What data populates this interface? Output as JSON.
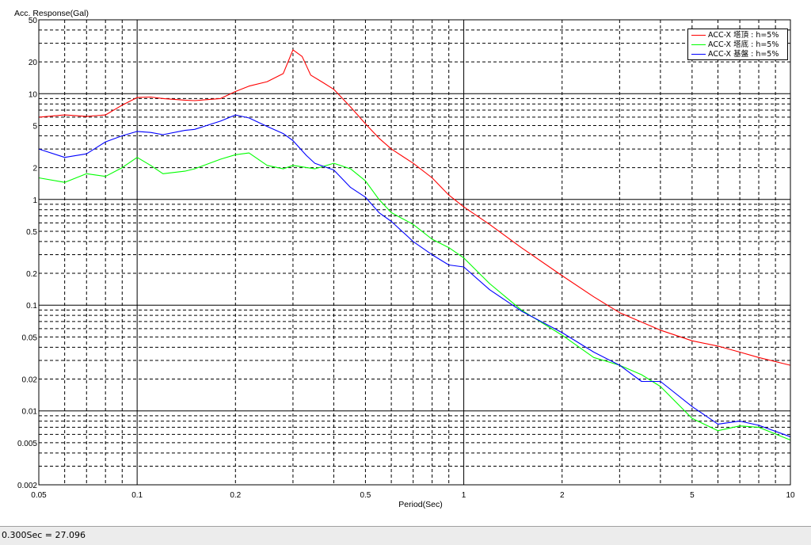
{
  "status_bar": {
    "text": "0.300Sec = 27.096"
  },
  "chart_data": {
    "type": "line",
    "title": "",
    "ylabel": "Acc. Response(Gal)",
    "xlabel": "Period(Sec)",
    "xscale": "log",
    "yscale": "log",
    "xlim": [
      0.05,
      10
    ],
    "ylim": [
      0.002,
      50
    ],
    "xticks": [
      0.05,
      0.1,
      0.2,
      0.5,
      1,
      2,
      5,
      10
    ],
    "xtick_labels": [
      "0.05",
      "0.1",
      "0.2",
      "0.5",
      "1",
      "2",
      "5",
      "10"
    ],
    "yticks": [
      0.002,
      0.005,
      0.01,
      0.02,
      0.05,
      0.1,
      0.2,
      0.5,
      1,
      2,
      5,
      10,
      20,
      50
    ],
    "ytick_labels": [
      "0.002",
      "0.005",
      "0.01",
      "0.02",
      "0.05",
      "0.1",
      "0.2",
      "0.5",
      "1",
      "2",
      "5",
      "10",
      "20",
      "50"
    ],
    "grid": true,
    "legend_position": "top-right",
    "series": [
      {
        "name": "ACC-X 塔頂 : h=5%",
        "color": "#ff0000",
        "points": [
          [
            0.05,
            6.0
          ],
          [
            0.06,
            6.3
          ],
          [
            0.07,
            6.1
          ],
          [
            0.08,
            6.3
          ],
          [
            0.09,
            7.8
          ],
          [
            0.1,
            9.2
          ],
          [
            0.11,
            9.3
          ],
          [
            0.12,
            9.0
          ],
          [
            0.14,
            8.7
          ],
          [
            0.15,
            8.6
          ],
          [
            0.18,
            9.0
          ],
          [
            0.2,
            10.5
          ],
          [
            0.22,
            11.8
          ],
          [
            0.25,
            13.0
          ],
          [
            0.28,
            15.5
          ],
          [
            0.3,
            26.0
          ],
          [
            0.32,
            22.5
          ],
          [
            0.34,
            15.0
          ],
          [
            0.37,
            12.8
          ],
          [
            0.4,
            11.0
          ],
          [
            0.45,
            7.5
          ],
          [
            0.5,
            5.2
          ],
          [
            0.55,
            3.8
          ],
          [
            0.6,
            3.0
          ],
          [
            0.7,
            2.2
          ],
          [
            0.8,
            1.6
          ],
          [
            0.9,
            1.1
          ],
          [
            1.0,
            0.85
          ],
          [
            1.2,
            0.58
          ],
          [
            1.5,
            0.35
          ],
          [
            2.0,
            0.19
          ],
          [
            2.5,
            0.12
          ],
          [
            3.0,
            0.085
          ],
          [
            4.0,
            0.058
          ],
          [
            5.0,
            0.046
          ],
          [
            6.0,
            0.041
          ],
          [
            7.0,
            0.036
          ],
          [
            8.0,
            0.032
          ],
          [
            10.0,
            0.027
          ]
        ]
      },
      {
        "name": "ACC-X 塔底 : h=5%",
        "color": "#00ff00",
        "points": [
          [
            0.05,
            1.6
          ],
          [
            0.06,
            1.45
          ],
          [
            0.07,
            1.75
          ],
          [
            0.08,
            1.65
          ],
          [
            0.09,
            2.0
          ],
          [
            0.1,
            2.5
          ],
          [
            0.11,
            2.1
          ],
          [
            0.12,
            1.75
          ],
          [
            0.14,
            1.85
          ],
          [
            0.15,
            1.95
          ],
          [
            0.18,
            2.4
          ],
          [
            0.2,
            2.65
          ],
          [
            0.22,
            2.75
          ],
          [
            0.25,
            2.1
          ],
          [
            0.28,
            1.95
          ],
          [
            0.3,
            2.1
          ],
          [
            0.35,
            1.95
          ],
          [
            0.4,
            2.2
          ],
          [
            0.45,
            1.95
          ],
          [
            0.5,
            1.5
          ],
          [
            0.55,
            1.0
          ],
          [
            0.6,
            0.75
          ],
          [
            0.7,
            0.58
          ],
          [
            0.8,
            0.42
          ],
          [
            0.9,
            0.35
          ],
          [
            1.0,
            0.28
          ],
          [
            1.2,
            0.16
          ],
          [
            1.5,
            0.09
          ],
          [
            2.0,
            0.052
          ],
          [
            2.5,
            0.032
          ],
          [
            3.0,
            0.027
          ],
          [
            3.5,
            0.022
          ],
          [
            4.0,
            0.017
          ],
          [
            5.0,
            0.0085
          ],
          [
            6.0,
            0.0065
          ],
          [
            7.0,
            0.0072
          ],
          [
            8.0,
            0.007
          ],
          [
            10.0,
            0.0053
          ]
        ]
      },
      {
        "name": "ACC-X 基盤 : h=5%",
        "color": "#0000ff",
        "points": [
          [
            0.05,
            3.0
          ],
          [
            0.06,
            2.5
          ],
          [
            0.07,
            2.7
          ],
          [
            0.08,
            3.5
          ],
          [
            0.09,
            4.0
          ],
          [
            0.1,
            4.4
          ],
          [
            0.11,
            4.3
          ],
          [
            0.12,
            4.1
          ],
          [
            0.14,
            4.5
          ],
          [
            0.15,
            4.6
          ],
          [
            0.18,
            5.5
          ],
          [
            0.2,
            6.3
          ],
          [
            0.22,
            5.9
          ],
          [
            0.25,
            4.9
          ],
          [
            0.28,
            4.2
          ],
          [
            0.3,
            3.6
          ],
          [
            0.33,
            2.6
          ],
          [
            0.35,
            2.2
          ],
          [
            0.4,
            1.9
          ],
          [
            0.45,
            1.3
          ],
          [
            0.5,
            1.05
          ],
          [
            0.55,
            0.75
          ],
          [
            0.6,
            0.62
          ],
          [
            0.7,
            0.4
          ],
          [
            0.8,
            0.3
          ],
          [
            0.9,
            0.24
          ],
          [
            1.0,
            0.23
          ],
          [
            1.2,
            0.14
          ],
          [
            1.5,
            0.088
          ],
          [
            2.0,
            0.055
          ],
          [
            2.5,
            0.036
          ],
          [
            3.0,
            0.027
          ],
          [
            3.5,
            0.019
          ],
          [
            4.0,
            0.019
          ],
          [
            5.0,
            0.011
          ],
          [
            6.0,
            0.0075
          ],
          [
            7.0,
            0.008
          ],
          [
            8.0,
            0.0073
          ],
          [
            10.0,
            0.0057
          ]
        ]
      }
    ]
  }
}
